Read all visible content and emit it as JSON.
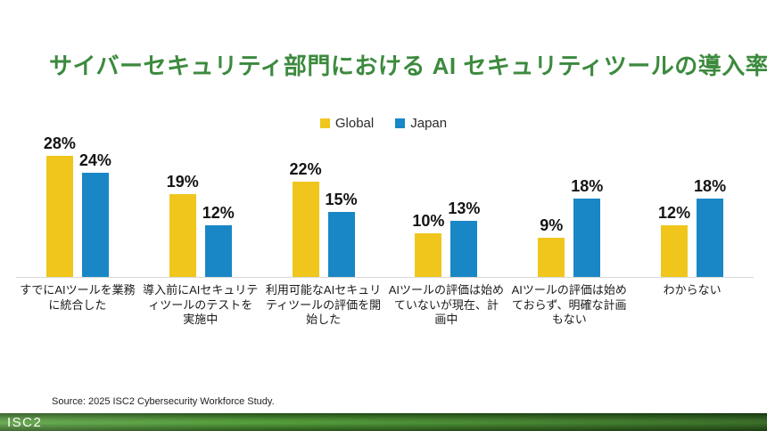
{
  "title": "サイバーセキュリティ部門における AI セキュリティツールの導入率",
  "source_note": "Source: 2025 ISC2 Cybersecurity Workforce Study.",
  "footer": {
    "logo_text": "ISC2"
  },
  "colors": {
    "title_green": "#3C8A3E",
    "global_yellow": "#F0C61D",
    "japan_blue": "#1987C6",
    "axis_line": "#D9D9D9",
    "footer_green": "#4F9237",
    "value_label": "#141414"
  },
  "chart_data": {
    "type": "bar",
    "title": "サイバーセキュリティ部門における AI セキュリティツールの導入率",
    "categories": [
      "すでにAIツールを業務に統合した",
      "導入前にAIセキュリティツールのテストを実施中",
      "利用可能なAIセキュリティツールの評価を開始した",
      "AIツールの評価は始めていないが現在、計画中",
      "AIツールの評価は始めておらず、明確な計画もない",
      "わからない"
    ],
    "series": [
      {
        "name": "Global",
        "color": "#F0C61D",
        "values": [
          28,
          19,
          22,
          10,
          9,
          12
        ]
      },
      {
        "name": "Japan",
        "color": "#1987C6",
        "values": [
          24,
          12,
          15,
          13,
          18,
          18
        ]
      }
    ],
    "value_suffix": "%",
    "xlabel": "",
    "ylabel": "",
    "ylim": [
      0,
      30
    ],
    "grid": false,
    "legend_position": "top-center",
    "value_labels_shown": true
  }
}
